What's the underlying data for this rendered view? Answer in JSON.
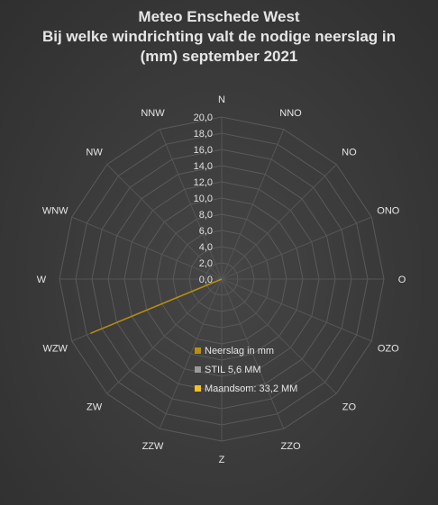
{
  "chart_data": {
    "type": "radar",
    "title_lines": [
      "Meteo Enschede West",
      "Bij welke windrichting valt de nodige neerslag in",
      "(mm) september 2021"
    ],
    "categories": [
      "N",
      "NNO",
      "NO",
      "ONO",
      "O",
      "OZO",
      "ZO",
      "ZZO",
      "Z",
      "ZZW",
      "ZW",
      "WZW",
      "W",
      "WNW",
      "NW",
      "NNW"
    ],
    "rlim": [
      0,
      20
    ],
    "tick_labels": [
      "0,0",
      "2,0",
      "4,0",
      "6,0",
      "8,0",
      "10,0",
      "12,0",
      "14,0",
      "16,0",
      "18,0",
      "20,0"
    ],
    "grid": true,
    "legend_position": "inside-bottom",
    "series": [
      {
        "name": "Neerslag in mm",
        "color": "#b8900e",
        "values": [
          0,
          0,
          0,
          0,
          0,
          0,
          0,
          0,
          0,
          0,
          0,
          17.5,
          0,
          0,
          0,
          0
        ]
      }
    ],
    "legend": [
      {
        "label": "Neerslag in mm",
        "color": "#b8900e"
      },
      {
        "label": "STIL 5,6 MM",
        "color": "#9a9a9a"
      },
      {
        "label": "Maandsom: 33,2 MM",
        "color": "#f2c21b"
      }
    ]
  }
}
